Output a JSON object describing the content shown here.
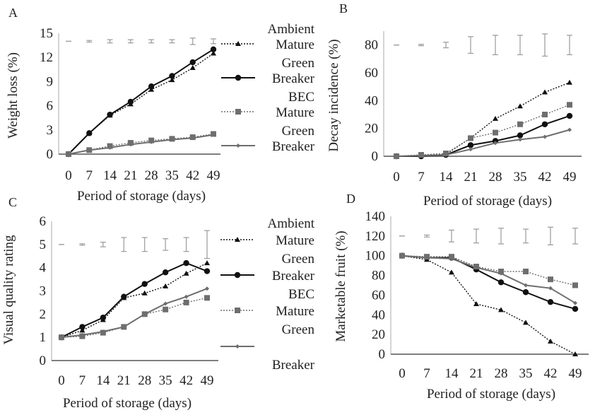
{
  "colors": {
    "ambient": "#111111",
    "bec": "#6e6e6e",
    "error_bar": "#9a9a9a",
    "axis": "#555555"
  },
  "legend_lines": [
    "Ambient",
    "Mature",
    "Green",
    "Breaker",
    "BEC",
    "Mature",
    "Green",
    "Breaker"
  ],
  "series_names": [
    "Ambient Mature Green",
    "Ambient Breaker",
    "BEC Mature Green",
    "BEC Breaker"
  ],
  "chart_data": [
    {
      "panel": "A",
      "type": "line",
      "xlabel": "Period of storage (days)",
      "ylabel": "Weight loss (%)",
      "categories": [
        "0",
        "7",
        "14",
        "21",
        "28",
        "35",
        "42",
        "49"
      ],
      "ylim": [
        0,
        15
      ],
      "yticks": [
        0,
        3,
        6,
        9,
        12,
        15
      ],
      "legend": "right",
      "error_bar_center": 14,
      "error_half": [
        0,
        0.1,
        0.2,
        0.2,
        0.2,
        0.2,
        0.4,
        0.3
      ],
      "series": [
        {
          "name": "Ambient Mature Green",
          "values": [
            0,
            2.6,
            4.8,
            6.2,
            8.0,
            9.2,
            10.7,
            12.5
          ]
        },
        {
          "name": "Ambient Breaker",
          "values": [
            0,
            2.6,
            4.9,
            6.5,
            8.4,
            9.7,
            11.4,
            13.0
          ]
        },
        {
          "name": "BEC Mature Green",
          "values": [
            0,
            0.5,
            1.0,
            1.4,
            1.7,
            1.9,
            2.1,
            2.5
          ]
        },
        {
          "name": "BEC Breaker",
          "values": [
            0,
            0.5,
            0.8,
            1.2,
            1.5,
            1.8,
            2.0,
            2.4
          ]
        }
      ]
    },
    {
      "panel": "B",
      "type": "line",
      "xlabel": "Period of storage (days)",
      "ylabel": "Decay incidence (%)",
      "categories": [
        "0",
        "7",
        "14",
        "21",
        "28",
        "35",
        "42",
        "49"
      ],
      "ylim": [
        0,
        90
      ],
      "yticks": [
        0,
        20,
        40,
        60,
        80
      ],
      "legend": "none",
      "error_bar_center": 80,
      "error_half": [
        0,
        0.5,
        2,
        6,
        7,
        7,
        8,
        7
      ],
      "series": [
        {
          "name": "Ambient Mature Green",
          "values": [
            0,
            0.5,
            1.5,
            13,
            27,
            36,
            46,
            53
          ]
        },
        {
          "name": "Ambient Breaker",
          "values": [
            0,
            0,
            1,
            8,
            11,
            15,
            23,
            29
          ]
        },
        {
          "name": "BEC Mature Green",
          "values": [
            0,
            1,
            2,
            13,
            17,
            23,
            30,
            37
          ]
        },
        {
          "name": "BEC Breaker",
          "values": [
            0,
            0.5,
            1,
            5,
            9.5,
            12,
            14,
            19
          ]
        }
      ]
    },
    {
      "panel": "C",
      "type": "line",
      "xlabel": "Period of storage (days)",
      "ylabel": "Visual quality rating",
      "categories": [
        "0",
        "7",
        "14",
        "21",
        "28",
        "35",
        "42",
        "49"
      ],
      "ylim": [
        0,
        6
      ],
      "yticks": [
        0,
        1,
        2,
        3,
        4,
        5,
        6
      ],
      "legend": "right",
      "error_bar_center": 5,
      "error_half": [
        0,
        0.03,
        0.1,
        0.3,
        0.3,
        0.25,
        0.3,
        0.6
      ],
      "series": [
        {
          "name": "Ambient Mature Green",
          "values": [
            1,
            1.3,
            1.75,
            2.7,
            2.9,
            3.2,
            3.75,
            4.2
          ]
        },
        {
          "name": "Ambient Breaker",
          "values": [
            1,
            1.45,
            1.85,
            2.75,
            3.3,
            3.8,
            4.2,
            3.85
          ]
        },
        {
          "name": "BEC Mature Green",
          "values": [
            1,
            1.05,
            1.2,
            1.45,
            2.0,
            2.2,
            2.5,
            2.7
          ]
        },
        {
          "name": "BEC Breaker",
          "values": [
            1,
            1.1,
            1.25,
            1.45,
            2.0,
            2.45,
            2.75,
            3.1
          ]
        }
      ]
    },
    {
      "panel": "D",
      "type": "line",
      "xlabel": "Period of storage (days)",
      "ylabel": "Marketable fruit (%)",
      "categories": [
        "0",
        "7",
        "14",
        "21",
        "28",
        "35",
        "42",
        "49"
      ],
      "ylim": [
        0,
        140
      ],
      "yticks": [
        0,
        20,
        40,
        60,
        80,
        100,
        120,
        140
      ],
      "legend": "none",
      "error_bar_center": 120,
      "error_half": [
        0,
        1,
        6,
        7,
        8,
        7,
        9,
        8
      ],
      "series": [
        {
          "name": "Ambient Mature Green",
          "values": [
            100,
            96,
            83,
            51,
            45,
            32,
            13,
            0
          ]
        },
        {
          "name": "Ambient Breaker",
          "values": [
            100,
            98,
            98,
            86,
            73,
            63,
            53,
            46
          ]
        },
        {
          "name": "BEC Mature Green",
          "values": [
            100,
            99,
            99,
            89,
            84,
            84,
            76,
            70
          ]
        },
        {
          "name": "BEC Breaker",
          "values": [
            100,
            98,
            97,
            88,
            82,
            70,
            67,
            52
          ]
        }
      ]
    }
  ]
}
